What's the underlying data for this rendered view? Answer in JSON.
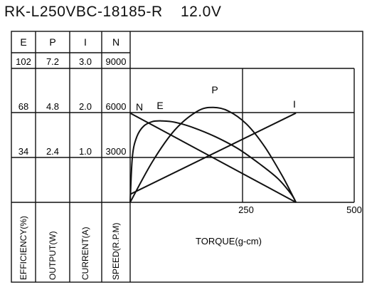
{
  "chart_data": {
    "type": "line",
    "title": "RK-L250VBC-18185-R    12.0V",
    "xlabel": "TORQUE(g-cm)",
    "x_ticks": [
      "250",
      "500"
    ],
    "xlim": [
      0,
      500
    ],
    "columns": [
      {
        "header": "E",
        "axis_label": "EFFICIENCY(%)",
        "ticks": [
          "102",
          "68",
          "34"
        ]
      },
      {
        "header": "P",
        "axis_label": "OUTPUT(W)",
        "ticks": [
          "7.2",
          "4.8",
          "2.4"
        ]
      },
      {
        "header": "I",
        "axis_label": "CURRENT(A)",
        "ticks": [
          "3.0",
          "2.0",
          "1.0"
        ]
      },
      {
        "header": "N",
        "axis_label": "SPEED(R.P.M)",
        "ticks": [
          "9000",
          "6000",
          "3000"
        ]
      }
    ],
    "grid": true,
    "series": [
      {
        "name": "N",
        "unit_axis": "SPEED(R.P.M)",
        "x": [
          0,
          370
        ],
        "y": [
          6000,
          0
        ]
      },
      {
        "name": "I",
        "unit_axis": "CURRENT(A)",
        "x": [
          0,
          370
        ],
        "y": [
          0.18,
          2.0
        ]
      },
      {
        "name": "E",
        "unit_axis": "EFFICIENCY(%)",
        "x": [
          0,
          5,
          15,
          30,
          50,
          70,
          100,
          140,
          190,
          240,
          290,
          330,
          360,
          370
        ],
        "y": [
          0,
          35,
          50,
          58,
          61.5,
          62,
          61,
          57,
          50,
          41,
          29,
          18,
          6,
          0
        ]
      },
      {
        "name": "P",
        "unit_axis": "OUTPUT(W)",
        "x": [
          0,
          50,
          100,
          150,
          185,
          220,
          260,
          300,
          340,
          370
        ],
        "y": [
          0,
          2.2,
          3.9,
          4.9,
          5.1,
          4.9,
          4.2,
          3.0,
          1.4,
          0
        ]
      }
    ]
  }
}
